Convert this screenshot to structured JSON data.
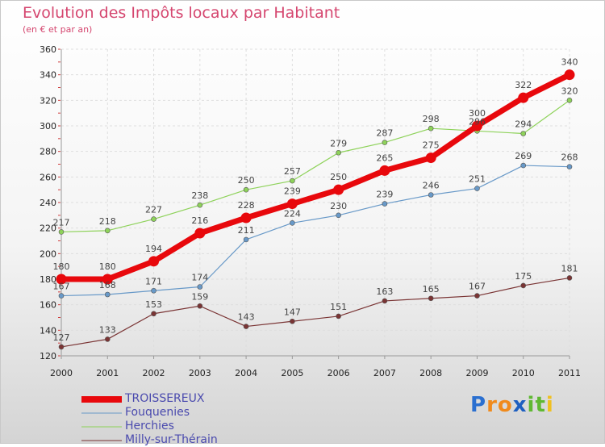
{
  "title": "Evolution des Impôts locaux par Habitant",
  "subtitle": "(en € et par an)",
  "logo": {
    "letters": [
      {
        "ch": "P",
        "color": "#2a6fd0"
      },
      {
        "ch": "r",
        "color": "#f08a1c"
      },
      {
        "ch": "o",
        "color": "#f08a1c"
      },
      {
        "ch": "x",
        "color": "#1e5fc0"
      },
      {
        "ch": "i",
        "color": "#5fb832"
      },
      {
        "ch": "t",
        "color": "#5fb832"
      },
      {
        "ch": "i",
        "color": "#f0c020"
      }
    ]
  },
  "chart_data": {
    "type": "line",
    "x": [
      "2000",
      "2001",
      "2002",
      "2003",
      "2004",
      "2005",
      "2006",
      "2007",
      "2008",
      "2009",
      "2010",
      "2011"
    ],
    "ylim": [
      120,
      360
    ],
    "yticks": [
      120,
      140,
      160,
      180,
      200,
      220,
      240,
      260,
      280,
      300,
      320,
      340,
      360
    ],
    "grid": true,
    "legend_position": "bottom-left",
    "series": [
      {
        "name": "TROISSEREUX",
        "color": "#e8080c",
        "width": 7,
        "dot": 6.5,
        "values": [
          180,
          180,
          194,
          216,
          228,
          239,
          250,
          265,
          275,
          300,
          322,
          340
        ],
        "labels": [
          "180",
          "180",
          "194",
          "216",
          "228",
          "239",
          "250",
          "265",
          "275",
          "300",
          "322",
          "340"
        ]
      },
      {
        "name": "Fouquenies",
        "color": "#6899c8",
        "width": 1.2,
        "dot": 3,
        "values": [
          167,
          168,
          171,
          174,
          211,
          224,
          230,
          239,
          246,
          251,
          269,
          268
        ],
        "labels": [
          "167",
          "168",
          "171",
          "174",
          "211",
          "224",
          "230",
          "239",
          "246",
          "251",
          "269",
          "268"
        ]
      },
      {
        "name": "Herchies",
        "color": "#8ed25a",
        "width": 1.2,
        "dot": 3,
        "values": [
          217,
          218,
          227,
          238,
          250,
          257,
          279,
          287,
          298,
          296,
          294,
          320
        ],
        "labels": [
          "217",
          "218",
          "227",
          "238",
          "250",
          "257",
          "279",
          "287",
          "298",
          "296",
          "294",
          "320"
        ]
      },
      {
        "name": "Milly-sur-Thérain",
        "color": "#7a3434",
        "width": 1.2,
        "dot": 3,
        "values": [
          127,
          133,
          153,
          159,
          143,
          147,
          151,
          163,
          165,
          167,
          175,
          181
        ],
        "labels": [
          "127",
          "133",
          "153",
          "159",
          "143",
          "147",
          "151",
          "163",
          "165",
          "167",
          "175",
          "181"
        ]
      }
    ]
  }
}
